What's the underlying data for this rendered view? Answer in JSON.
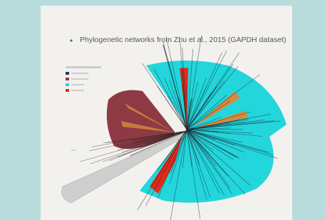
{
  "slide": {
    "title": "Phylogenetic networks from Zhu et al., 2015 (GAPDH dataset)"
  }
}
